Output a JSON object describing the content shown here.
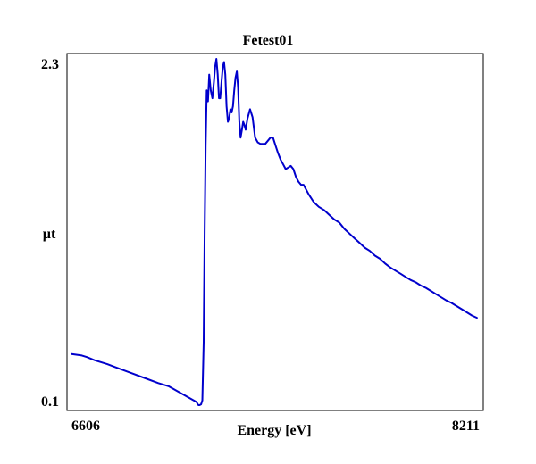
{
  "chart_data": {
    "type": "line",
    "title": "Fetest01",
    "xlabel": "Energy [eV]",
    "ylabel": "µt",
    "xlim": [
      6606,
      8211
    ],
    "ylim": [
      0.1,
      2.3
    ],
    "x_tick_labels": [
      "6606",
      "8211"
    ],
    "y_tick_labels": [
      "0.1",
      "2.3"
    ],
    "grid": false,
    "legend": "none",
    "series": [
      {
        "color": "#0000cc",
        "x": [
          6610,
          6650,
          6670,
          6700,
          6750,
          6800,
          6850,
          6900,
          6950,
          6990,
          7100,
          7105,
          7108,
          7112,
          7118,
          7123,
          7128,
          7132,
          7136,
          7140,
          7145,
          7150,
          7156,
          7162,
          7168,
          7173,
          7178,
          7183,
          7188,
          7193,
          7198,
          7203,
          7208,
          7213,
          7218,
          7223,
          7228,
          7233,
          7238,
          7243,
          7248,
          7253,
          7258,
          7263,
          7268,
          7273,
          7278,
          7283,
          7288,
          7293,
          7300,
          7310,
          7320,
          7330,
          7340,
          7350,
          7360,
          7370,
          7380,
          7390,
          7400,
          7410,
          7420,
          7430,
          7440,
          7450,
          7460,
          7470,
          7480,
          7490,
          7500,
          7510,
          7520,
          7540,
          7560,
          7580,
          7600,
          7620,
          7640,
          7660,
          7680,
          7700,
          7720,
          7740,
          7760,
          7780,
          7800,
          7820,
          7840,
          7860,
          7880,
          7900,
          7920,
          7940,
          7960,
          7980,
          8000,
          8020,
          8040,
          8060,
          8080,
          8100,
          8120,
          8140,
          8160,
          8180,
          8200
        ],
        "y": [
          0.425,
          0.415,
          0.405,
          0.385,
          0.36,
          0.33,
          0.3,
          0.27,
          0.24,
          0.22,
          0.12,
          0.105,
          0.1,
          0.1,
          0.105,
          0.13,
          0.5,
          1.2,
          1.75,
          2.1,
          2.03,
          2.2,
          2.1,
          2.05,
          2.15,
          2.25,
          2.3,
          2.2,
          2.05,
          2.05,
          2.15,
          2.25,
          2.28,
          2.2,
          2.0,
          1.9,
          1.92,
          1.98,
          1.96,
          2.0,
          2.1,
          2.18,
          2.22,
          2.12,
          1.9,
          1.8,
          1.85,
          1.9,
          1.88,
          1.85,
          1.92,
          1.98,
          1.93,
          1.8,
          1.77,
          1.76,
          1.76,
          1.76,
          1.78,
          1.8,
          1.8,
          1.75,
          1.7,
          1.66,
          1.63,
          1.6,
          1.61,
          1.62,
          1.6,
          1.55,
          1.52,
          1.5,
          1.5,
          1.44,
          1.39,
          1.36,
          1.34,
          1.31,
          1.28,
          1.26,
          1.22,
          1.19,
          1.16,
          1.13,
          1.1,
          1.08,
          1.05,
          1.03,
          1.0,
          0.975,
          0.955,
          0.935,
          0.915,
          0.895,
          0.88,
          0.86,
          0.845,
          0.825,
          0.805,
          0.785,
          0.765,
          0.75,
          0.73,
          0.71,
          0.69,
          0.67,
          0.655
        ]
      }
    ]
  }
}
